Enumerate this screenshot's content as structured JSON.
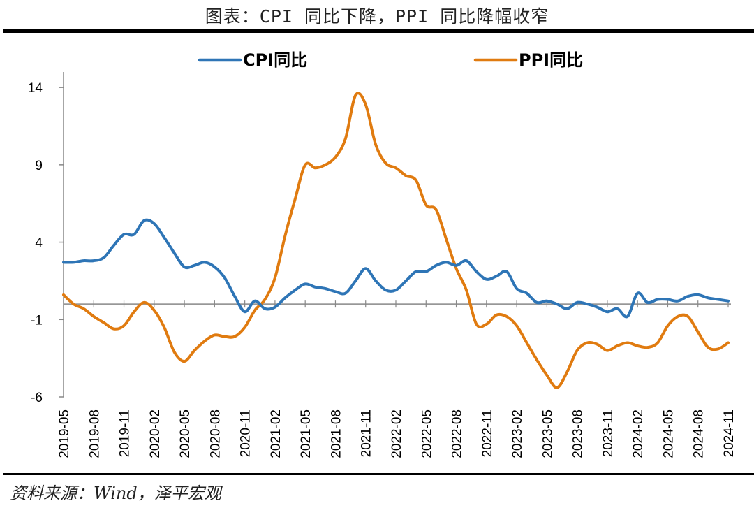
{
  "title": "图表：CPI 同比下降，PPI 同比降幅收窄",
  "source": "资料来源：Wind，泽平宏观",
  "chart_data": {
    "type": "line",
    "title": "图表：CPI 同比下降，PPI 同比降幅收窄",
    "xlabel": "",
    "ylabel": "",
    "ylim": [
      -6,
      15
    ],
    "yticks": [
      -6,
      -1,
      4,
      9,
      14
    ],
    "xtick_labels": [
      "2019-05",
      "2019-08",
      "2019-11",
      "2020-02",
      "2020-05",
      "2020-08",
      "2020-11",
      "2021-02",
      "2021-05",
      "2021-08",
      "2021-11",
      "2022-02",
      "2022-05",
      "2022-08",
      "2022-11",
      "2023-02",
      "2023-05",
      "2023-08",
      "2023-11",
      "2024-02",
      "2024-05",
      "2024-08",
      "2024-11"
    ],
    "x": [
      "2019-05",
      "2019-06",
      "2019-07",
      "2019-08",
      "2019-09",
      "2019-10",
      "2019-11",
      "2019-12",
      "2020-01",
      "2020-02",
      "2020-03",
      "2020-04",
      "2020-05",
      "2020-06",
      "2020-07",
      "2020-08",
      "2020-09",
      "2020-10",
      "2020-11",
      "2020-12",
      "2021-01",
      "2021-02",
      "2021-03",
      "2021-04",
      "2021-05",
      "2021-06",
      "2021-07",
      "2021-08",
      "2021-09",
      "2021-10",
      "2021-11",
      "2021-12",
      "2022-01",
      "2022-02",
      "2022-03",
      "2022-04",
      "2022-05",
      "2022-06",
      "2022-07",
      "2022-08",
      "2022-09",
      "2022-10",
      "2022-11",
      "2022-12",
      "2023-01",
      "2023-02",
      "2023-03",
      "2023-04",
      "2023-05",
      "2023-06",
      "2023-07",
      "2023-08",
      "2023-09",
      "2023-10",
      "2023-11",
      "2023-12",
      "2024-01",
      "2024-02",
      "2024-03",
      "2024-04",
      "2024-05",
      "2024-06",
      "2024-07",
      "2024-08",
      "2024-09",
      "2024-10",
      "2024-11"
    ],
    "legend_position": "top",
    "grid": false,
    "series": [
      {
        "name": "CPI同比",
        "color": "#2E75B6",
        "values": [
          2.7,
          2.7,
          2.8,
          2.8,
          3.0,
          3.8,
          4.5,
          4.5,
          5.4,
          5.2,
          4.3,
          3.3,
          2.4,
          2.5,
          2.7,
          2.4,
          1.7,
          0.5,
          -0.5,
          0.2,
          -0.3,
          -0.2,
          0.4,
          0.9,
          1.3,
          1.1,
          1.0,
          0.8,
          0.7,
          1.5,
          2.3,
          1.5,
          0.9,
          0.9,
          1.5,
          2.1,
          2.1,
          2.5,
          2.7,
          2.5,
          2.8,
          2.1,
          1.6,
          1.8,
          2.1,
          1.0,
          0.7,
          0.1,
          0.2,
          0.0,
          -0.3,
          0.1,
          0.0,
          -0.2,
          -0.5,
          -0.3,
          -0.8,
          0.7,
          0.1,
          0.3,
          0.3,
          0.2,
          0.5,
          0.6,
          0.4,
          0.3,
          0.2
        ]
      },
      {
        "name": "PPI同比",
        "color": "#E07B10",
        "values": [
          0.6,
          0.0,
          -0.3,
          -0.8,
          -1.2,
          -1.6,
          -1.4,
          -0.5,
          0.1,
          -0.4,
          -1.5,
          -3.1,
          -3.7,
          -3.0,
          -2.4,
          -2.0,
          -2.1,
          -2.1,
          -1.5,
          -0.4,
          0.3,
          1.7,
          4.4,
          6.8,
          9.0,
          8.8,
          9.0,
          9.5,
          10.7,
          13.5,
          12.9,
          10.3,
          9.1,
          8.8,
          8.3,
          8.0,
          6.4,
          6.1,
          4.2,
          2.3,
          0.9,
          -1.3,
          -1.3,
          -0.7,
          -0.8,
          -1.4,
          -2.5,
          -3.6,
          -4.6,
          -5.4,
          -4.4,
          -3.0,
          -2.5,
          -2.6,
          -3.0,
          -2.7,
          -2.5,
          -2.7,
          -2.8,
          -2.5,
          -1.4,
          -0.8,
          -0.8,
          -1.8,
          -2.8,
          -2.9,
          -2.5
        ]
      }
    ]
  }
}
